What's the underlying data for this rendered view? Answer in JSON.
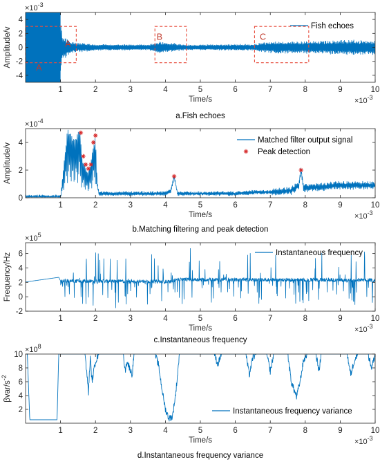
{
  "colors": {
    "series": "#0072bd",
    "peak": "#d62728",
    "region": "#e74c3c",
    "axis": "#262626"
  },
  "chart_data": [
    {
      "type": "line",
      "caption": "a.Fish echoes",
      "xlabel": "Time/s",
      "ylabel": "Amplitude/v",
      "x_multiplier": "×10",
      "x_exp": "-3",
      "y_multiplier": "×10",
      "y_exp": "-3",
      "xlim": [
        0,
        10
      ],
      "ylim": [
        -5,
        5
      ],
      "xticks": [
        "1",
        "2",
        "3",
        "4",
        "5",
        "6",
        "7",
        "8",
        "9",
        "10"
      ],
      "yticks": [
        "-4",
        "-2",
        "0",
        "2",
        "4"
      ],
      "legend": {
        "position": "top-right",
        "entries": [
          "Fish echoes"
        ]
      },
      "series": [
        {
          "name": "Fish echoes",
          "envelope": [
            [
              0,
              5
            ],
            [
              1.0,
              5
            ],
            [
              1.05,
              2
            ],
            [
              1.3,
              0.8
            ],
            [
              2,
              0.5
            ],
            [
              3.5,
              0.4
            ],
            [
              3.8,
              0.9
            ],
            [
              4.2,
              0.7
            ],
            [
              4.6,
              0.4
            ],
            [
              6.5,
              0.5
            ],
            [
              7,
              0.9
            ],
            [
              7.9,
              0.9
            ],
            [
              8.5,
              1.0
            ],
            [
              9,
              1.1
            ],
            [
              10,
              1.1
            ]
          ]
        }
      ],
      "regions": [
        {
          "label": "A",
          "x": [
            0,
            1.45
          ],
          "y": [
            -2.2,
            3.0
          ]
        },
        {
          "label": "B",
          "x": [
            3.7,
            4.6
          ],
          "y": [
            -2.2,
            3.0
          ]
        },
        {
          "label": "C",
          "x": [
            6.55,
            8.1
          ],
          "y": [
            -2.2,
            3.0
          ]
        }
      ],
      "inner_labels": [
        "A",
        "A",
        "B",
        "C"
      ]
    },
    {
      "type": "line",
      "caption": "b.Matching filtering and peak detection",
      "xlabel": "Time/s",
      "ylabel": "Amplitude/v",
      "x_multiplier": "×10",
      "x_exp": "-3",
      "y_multiplier": "×10",
      "y_exp": "-4",
      "xlim": [
        0,
        10
      ],
      "ylim": [
        0,
        5
      ],
      "xticks": [
        "1",
        "2",
        "3",
        "4",
        "5",
        "6",
        "7",
        "8",
        "9",
        "10"
      ],
      "yticks": [
        "0",
        "2",
        "4"
      ],
      "legend": {
        "position": "top-right",
        "entries": [
          "Matched filter output signal",
          "Peak detection"
        ]
      },
      "series": [
        {
          "name": "Matched filter output signal",
          "x": [
            0,
            1.0,
            1.2,
            1.4,
            1.55,
            1.62,
            1.7,
            1.78,
            1.85,
            1.92,
            2.0,
            2.05,
            2.1,
            2.3,
            3.0,
            4.0,
            4.15,
            4.25,
            4.35,
            5.0,
            6.0,
            6.6,
            7.0,
            7.6,
            7.82,
            7.88,
            7.95,
            8.5,
            9.0,
            10.0
          ],
          "y": [
            0.05,
            0.05,
            5.0,
            4.2,
            5.0,
            2.8,
            2.3,
            1.8,
            2.3,
            3.5,
            4.5,
            1.0,
            0.3,
            0.3,
            0.3,
            0.3,
            0.5,
            1.5,
            0.3,
            0.3,
            0.3,
            0.4,
            0.4,
            0.5,
            0.9,
            2.0,
            0.7,
            0.8,
            0.9,
            0.9
          ]
        }
      ],
      "peaks": {
        "name": "Peak detection",
        "x": [
          1.58,
          1.65,
          1.72,
          1.8,
          1.87,
          1.94,
          2.0,
          4.25,
          7.88
        ],
        "y": [
          4.7,
          3.0,
          2.4,
          2.1,
          2.4,
          4.0,
          4.5,
          1.55,
          2.0
        ]
      }
    },
    {
      "type": "line",
      "caption": "c.Instantaneous frequency",
      "xlabel": "Time/s",
      "ylabel": "Frequency/Hz",
      "x_multiplier": "×10",
      "x_exp": "-3",
      "y_multiplier": "×10",
      "y_exp": "5",
      "xlim": [
        0,
        10
      ],
      "ylim": [
        -2,
        7.5
      ],
      "xticks": [
        "1",
        "2",
        "3",
        "4",
        "5",
        "6",
        "7",
        "8",
        "9",
        "10"
      ],
      "yticks": [
        "-2",
        "0",
        "2",
        "4",
        "6"
      ],
      "legend": {
        "position": "top-right",
        "entries": [
          "Instantaneous frequency"
        ]
      },
      "series": [
        {
          "name": "Instantaneous frequency",
          "baseline": [
            [
              0,
              2.05
            ],
            [
              0.95,
              2.7
            ],
            [
              1.0,
              2.2
            ],
            [
              4.2,
              2.1
            ],
            [
              4.3,
              2.4
            ],
            [
              10,
              2.3
            ]
          ]
        }
      ]
    },
    {
      "type": "line",
      "caption": "d.Instantaneous frequency variance",
      "xlabel": "Time/s",
      "ylabel": "βvar/s",
      "ylabel_exp": "-2",
      "x_multiplier": "×10",
      "x_exp": "-3",
      "y_multiplier": "×10",
      "y_exp": "8",
      "xlim": [
        0,
        10
      ],
      "ylim": [
        0,
        10
      ],
      "xticks": [
        "1",
        "2",
        "3",
        "4",
        "5",
        "6",
        "7",
        "8",
        "9",
        "10"
      ],
      "yticks": [
        "2",
        "4",
        "6",
        "8",
        "10"
      ],
      "legend": {
        "position": "bottom-right",
        "entries": [
          "Instantaneous frequency variance"
        ]
      },
      "series": [
        {
          "name": "Instantaneous frequency variance",
          "x": [
            0,
            0.05,
            0.12,
            0.9,
            0.95,
            1.0,
            1.7,
            1.8,
            1.85,
            1.9,
            2.0,
            2.1,
            2.8,
            2.85,
            2.9,
            3.05,
            3.1,
            3.7,
            3.8,
            3.9,
            4.0,
            4.1,
            4.2,
            4.3,
            4.4,
            5.4,
            5.5,
            5.6,
            5.9,
            6.3,
            6.4,
            6.5,
            6.6,
            6.9,
            7.0,
            7.1,
            7.5,
            7.6,
            7.75,
            7.85,
            7.95,
            8.05,
            8.3,
            8.4,
            8.45,
            9.2,
            9.3,
            9.4,
            9.5,
            9.8,
            9.9,
            10.0
          ],
          "y": [
            10,
            10,
            0.5,
            0.5,
            10,
            10,
            10,
            4.5,
            9.5,
            6.0,
            9.0,
            10,
            10,
            7.5,
            9.0,
            7.0,
            10,
            10,
            8.5,
            5.0,
            2.0,
            0.7,
            0.9,
            4.5,
            10,
            10,
            8.5,
            10,
            10,
            10,
            7.0,
            9.5,
            10,
            10,
            7.5,
            10,
            10,
            6.0,
            3.8,
            6.0,
            9.0,
            10,
            10,
            7.5,
            10,
            10,
            7.0,
            9.0,
            10,
            10,
            8.0,
            10
          ]
        }
      ]
    }
  ]
}
